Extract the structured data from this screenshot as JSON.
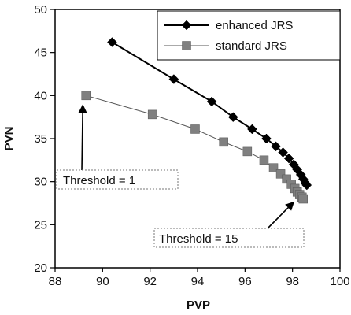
{
  "chart_data": {
    "type": "line",
    "xlabel": "PVP",
    "ylabel": "PVN",
    "xlim": [
      88,
      100
    ],
    "ylim": [
      20,
      50
    ],
    "xticks": [
      88,
      90,
      92,
      94,
      96,
      98,
      100
    ],
    "yticks": [
      20,
      25,
      30,
      35,
      40,
      45,
      50
    ],
    "grid": false,
    "legend_position": "top-right",
    "series": [
      {
        "name": "enhanced JRS",
        "marker": "diamond",
        "color": "#000000",
        "points": [
          [
            90.4,
            46.2
          ],
          [
            93.0,
            41.9
          ],
          [
            94.6,
            39.3
          ],
          [
            95.5,
            37.5
          ],
          [
            96.3,
            36.1
          ],
          [
            96.9,
            35.0
          ],
          [
            97.3,
            34.1
          ],
          [
            97.6,
            33.4
          ],
          [
            97.85,
            32.7
          ],
          [
            98.05,
            32.0
          ],
          [
            98.2,
            31.4
          ],
          [
            98.35,
            30.8
          ],
          [
            98.45,
            30.3
          ],
          [
            98.55,
            29.8
          ],
          [
            98.6,
            29.6
          ]
        ]
      },
      {
        "name": "standard JRS",
        "marker": "square",
        "color": "#808080",
        "points": [
          [
            89.3,
            40.0
          ],
          [
            92.1,
            37.8
          ],
          [
            93.9,
            36.1
          ],
          [
            95.1,
            34.6
          ],
          [
            96.1,
            33.5
          ],
          [
            96.8,
            32.5
          ],
          [
            97.2,
            31.6
          ],
          [
            97.5,
            30.9
          ],
          [
            97.75,
            30.3
          ],
          [
            97.95,
            29.7
          ],
          [
            98.1,
            29.2
          ],
          [
            98.2,
            28.8
          ],
          [
            98.3,
            28.5
          ],
          [
            98.4,
            28.2
          ],
          [
            98.45,
            28.0
          ]
        ]
      }
    ],
    "annotations": [
      {
        "text": "Threshold = 1",
        "target": [
          89.3,
          40.0
        ]
      },
      {
        "text": "Threshold = 15",
        "target": [
          98.45,
          28.0
        ]
      }
    ]
  }
}
